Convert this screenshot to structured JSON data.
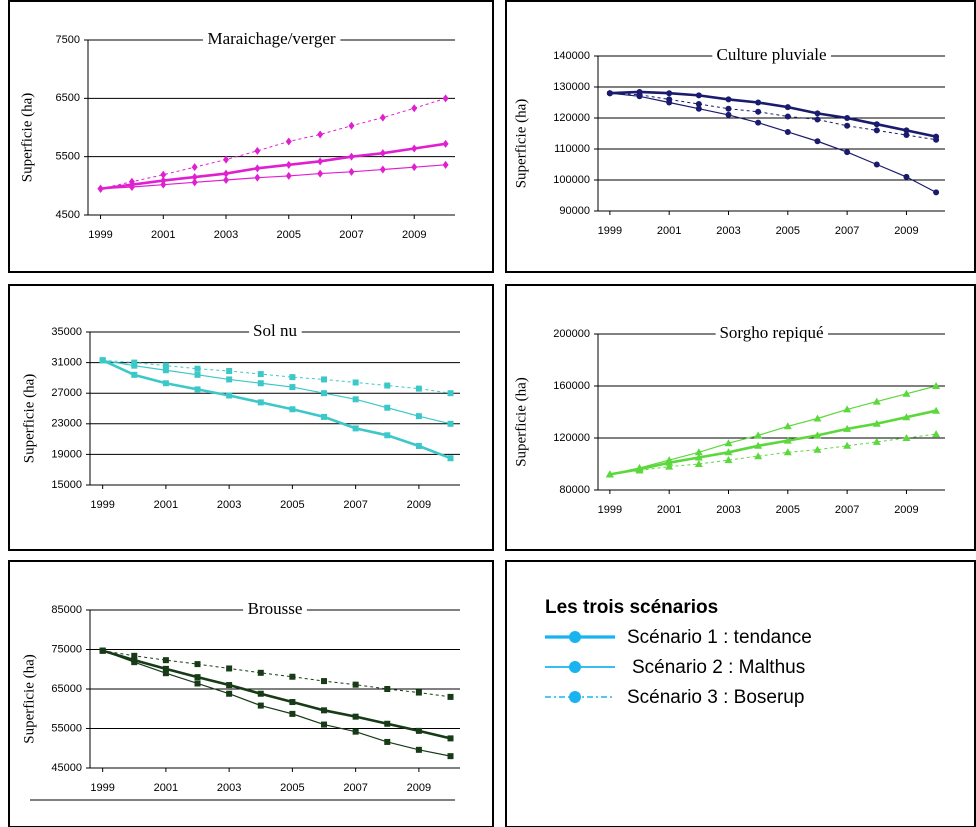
{
  "chart_data": [
    {
      "type": "line",
      "title": "Maraichage/verger",
      "y_label": "Superficie (ha)",
      "marker": "diamond",
      "x": [
        1999,
        2000,
        2001,
        2002,
        2003,
        2004,
        2005,
        2006,
        2007,
        2008,
        2009,
        2010
      ],
      "xlim": [
        1998.6,
        2010.3
      ],
      "xticks": [
        1999,
        2001,
        2003,
        2005,
        2007,
        2009
      ],
      "ylim": [
        4500,
        7500
      ],
      "yticks": [
        4500,
        5500,
        6500,
        7500
      ],
      "grid": true,
      "series": [
        {
          "color": "#e020d0",
          "style": "thick",
          "values": [
            4950,
            5020,
            5090,
            5150,
            5210,
            5300,
            5360,
            5420,
            5500,
            5560,
            5640,
            5720
          ]
        },
        {
          "color": "#e020d0",
          "style": "thin",
          "values": [
            4950,
            4980,
            5020,
            5060,
            5100,
            5140,
            5170,
            5210,
            5240,
            5280,
            5320,
            5360
          ]
        },
        {
          "color": "#e020d0",
          "style": "dashed",
          "values": [
            4950,
            5070,
            5190,
            5320,
            5450,
            5600,
            5760,
            5880,
            6030,
            6170,
            6330,
            6500
          ]
        }
      ]
    },
    {
      "type": "line",
      "title": "Culture pluviale",
      "y_label": "Superficie (ha)",
      "marker": "circle",
      "x": [
        1999,
        2000,
        2001,
        2002,
        2003,
        2004,
        2005,
        2006,
        2007,
        2008,
        2009,
        2010
      ],
      "xlim": [
        1998.6,
        2010.3
      ],
      "xticks": [
        1999,
        2001,
        2003,
        2005,
        2007,
        2009
      ],
      "ylim": [
        90000,
        140000
      ],
      "yticks": [
        90000,
        100000,
        110000,
        120000,
        130000,
        140000
      ],
      "grid": true,
      "series": [
        {
          "color": "#1a1a6e",
          "style": "thick",
          "values": [
            128000,
            128400,
            128000,
            127300,
            126000,
            125000,
            123500,
            121500,
            120000,
            118000,
            116000,
            114000
          ]
        },
        {
          "color": "#1a1a6e",
          "style": "thin",
          "values": [
            128000,
            127000,
            125000,
            123000,
            121000,
            118500,
            115500,
            112500,
            109000,
            105000,
            101000,
            96000
          ]
        },
        {
          "color": "#1a1a6e",
          "style": "dashed",
          "values": [
            128000,
            127500,
            126000,
            124500,
            123000,
            122000,
            120500,
            119500,
            117500,
            116000,
            114500,
            113000
          ]
        }
      ]
    },
    {
      "type": "line",
      "title": "Sol nu",
      "y_label": "Superficie (ha)",
      "marker": "square",
      "x": [
        1999,
        2000,
        2001,
        2002,
        2003,
        2004,
        2005,
        2006,
        2007,
        2008,
        2009,
        2010
      ],
      "xlim": [
        1998.6,
        2010.3
      ],
      "xticks": [
        1999,
        2001,
        2003,
        2005,
        2007,
        2009
      ],
      "ylim": [
        15000,
        35000
      ],
      "yticks": [
        15000,
        19000,
        23000,
        27000,
        31000,
        35000
      ],
      "grid": true,
      "series": [
        {
          "color": "#3cc8c8",
          "style": "thick",
          "values": [
            31300,
            29400,
            28300,
            27500,
            26700,
            25800,
            24900,
            23900,
            22400,
            21500,
            20100,
            18500
          ]
        },
        {
          "color": "#3cc8c8",
          "style": "thin",
          "values": [
            31300,
            30600,
            30000,
            29400,
            28800,
            28300,
            27800,
            27000,
            26200,
            25100,
            24000,
            23000
          ]
        },
        {
          "color": "#3cc8c8",
          "style": "dashed",
          "values": [
            31300,
            31000,
            30600,
            30200,
            29900,
            29500,
            29100,
            28800,
            28400,
            28000,
            27600,
            27000
          ]
        }
      ]
    },
    {
      "type": "line",
      "title": "Sorgho repiqué",
      "y_label": "Superficie (ha)",
      "marker": "triangle",
      "x": [
        1999,
        2000,
        2001,
        2002,
        2003,
        2004,
        2005,
        2006,
        2007,
        2008,
        2009,
        2010
      ],
      "xlim": [
        1998.6,
        2010.3
      ],
      "xticks": [
        1999,
        2001,
        2003,
        2005,
        2007,
        2009
      ],
      "ylim": [
        80000,
        200000
      ],
      "yticks": [
        80000,
        120000,
        160000,
        200000
      ],
      "grid": true,
      "series": [
        {
          "color": "#5cd83c",
          "style": "thick",
          "values": [
            92000,
            96000,
            101000,
            105000,
            109000,
            114000,
            118000,
            122000,
            127000,
            131000,
            136000,
            141000
          ]
        },
        {
          "color": "#5cd83c",
          "style": "thin",
          "values": [
            92000,
            97000,
            103000,
            109000,
            116000,
            122000,
            129000,
            135000,
            142000,
            148000,
            154000,
            160000
          ]
        },
        {
          "color": "#5cd83c",
          "style": "dashed",
          "values": [
            92000,
            95000,
            98000,
            100000,
            103000,
            106000,
            109000,
            111000,
            114000,
            117000,
            120000,
            123000
          ]
        }
      ]
    },
    {
      "type": "line",
      "title": "Brousse",
      "y_label": "Superficie (ha)",
      "marker": "square",
      "x": [
        1999,
        2000,
        2001,
        2002,
        2003,
        2004,
        2005,
        2006,
        2007,
        2008,
        2009,
        2010
      ],
      "xlim": [
        1998.6,
        2010.3
      ],
      "xticks": [
        1999,
        2001,
        2003,
        2005,
        2007,
        2009
      ],
      "ylim": [
        45000,
        85000
      ],
      "yticks": [
        45000,
        55000,
        65000,
        75000,
        85000
      ],
      "grid": true,
      "series": [
        {
          "color": "#173a17",
          "style": "thick",
          "values": [
            74700,
            72300,
            70100,
            68000,
            66000,
            63800,
            61700,
            59600,
            58000,
            56200,
            54400,
            52500
          ]
        },
        {
          "color": "#173a17",
          "style": "thin",
          "values": [
            74700,
            71800,
            69000,
            66400,
            63800,
            60800,
            58700,
            56000,
            54200,
            51600,
            49600,
            48000
          ]
        },
        {
          "color": "#173a17",
          "style": "dashed",
          "values": [
            74700,
            73400,
            72300,
            71300,
            70200,
            69100,
            68100,
            67000,
            66100,
            65000,
            64100,
            63000
          ]
        }
      ]
    }
  ],
  "legend": {
    "title": "Les trois scénarios",
    "color": "#19b4f0",
    "items": [
      {
        "label": "Scénario 1 : tendance",
        "style": "thick"
      },
      {
        "label": "Scénario 2 : Malthus",
        "style": "thin"
      },
      {
        "label": "Scénario 3 : Boserup",
        "style": "dashed"
      }
    ]
  }
}
